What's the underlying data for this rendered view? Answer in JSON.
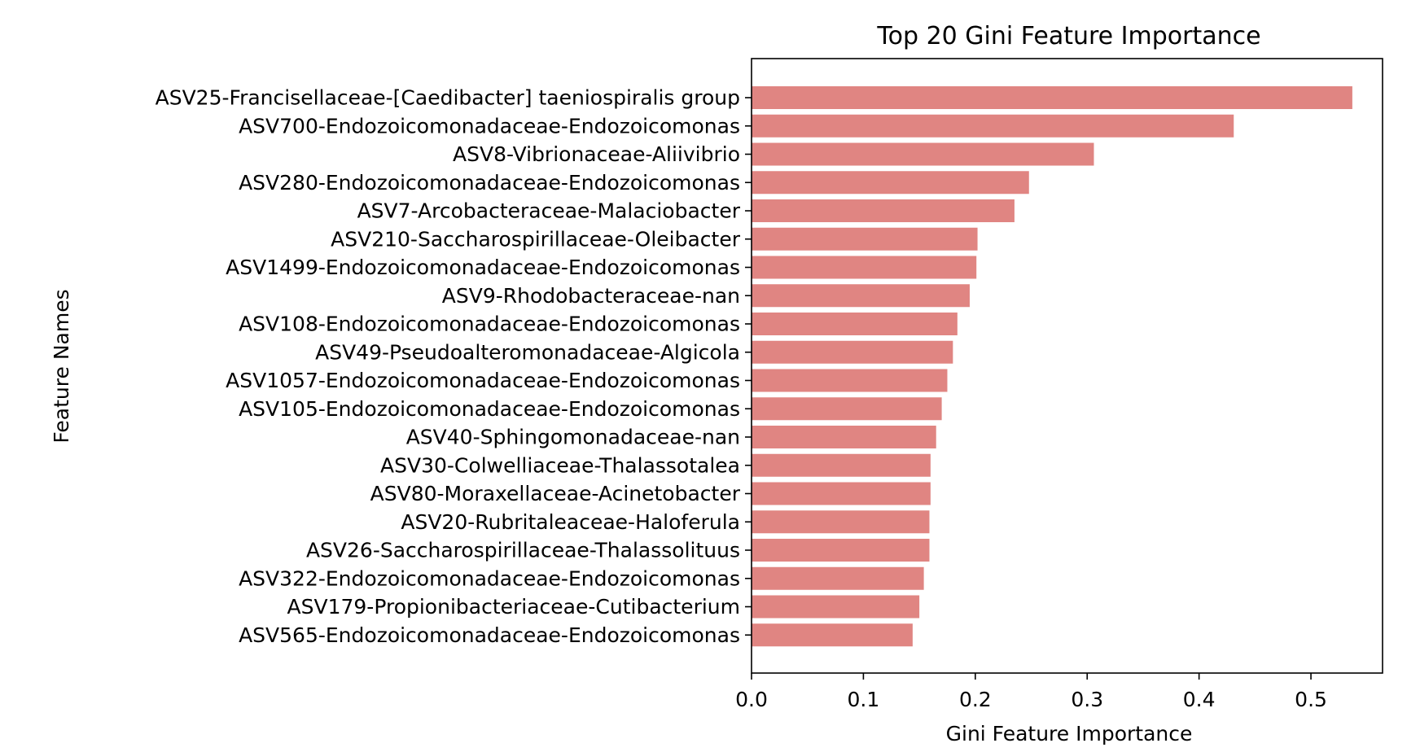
{
  "chart_data": {
    "type": "bar",
    "orientation": "horizontal",
    "title": "Top 20 Gini Feature Importance",
    "xlabel": "Gini Feature Importance",
    "ylabel": "Feature Names",
    "xlim": [
      0,
      0.564
    ],
    "xticks": [
      "0.0",
      "0.1",
      "0.2",
      "0.3",
      "0.4",
      "0.5"
    ],
    "grid": false,
    "bar_color": "#e08582",
    "categories": [
      "ASV25-Francisellaceae-[Caedibacter] taeniospiralis group",
      "ASV700-Endozoicomonadaceae-Endozoicomonas",
      "ASV8-Vibrionaceae-Aliivibrio",
      "ASV280-Endozoicomonadaceae-Endozoicomonas",
      "ASV7-Arcobacteraceae-Malaciobacter",
      "ASV210-Saccharospirillaceae-Oleibacter",
      "ASV1499-Endozoicomonadaceae-Endozoicomonas",
      "ASV9-Rhodobacteraceae-nan",
      "ASV108-Endozoicomonadaceae-Endozoicomonas",
      "ASV49-Pseudoalteromonadaceae-Algicola",
      "ASV1057-Endozoicomonadaceae-Endozoicomonas",
      "ASV105-Endozoicomonadaceae-Endozoicomonas",
      "ASV40-Sphingomonadaceae-nan",
      "ASV30-Colwelliaceae-Thalassotalea",
      "ASV80-Moraxellaceae-Acinetobacter",
      "ASV20-Rubritaleaceae-Haloferula",
      "ASV26-Saccharospirillaceae-Thalassolituus",
      "ASV322-Endozoicomonadaceae-Endozoicomonas",
      "ASV179-Propionibacteriaceae-Cutibacterium",
      "ASV565-Endozoicomonadaceae-Endozoicomonas"
    ],
    "values": [
      0.537,
      0.431,
      0.306,
      0.248,
      0.235,
      0.202,
      0.201,
      0.195,
      0.184,
      0.18,
      0.175,
      0.17,
      0.165,
      0.16,
      0.16,
      0.159,
      0.159,
      0.154,
      0.15,
      0.144
    ]
  }
}
